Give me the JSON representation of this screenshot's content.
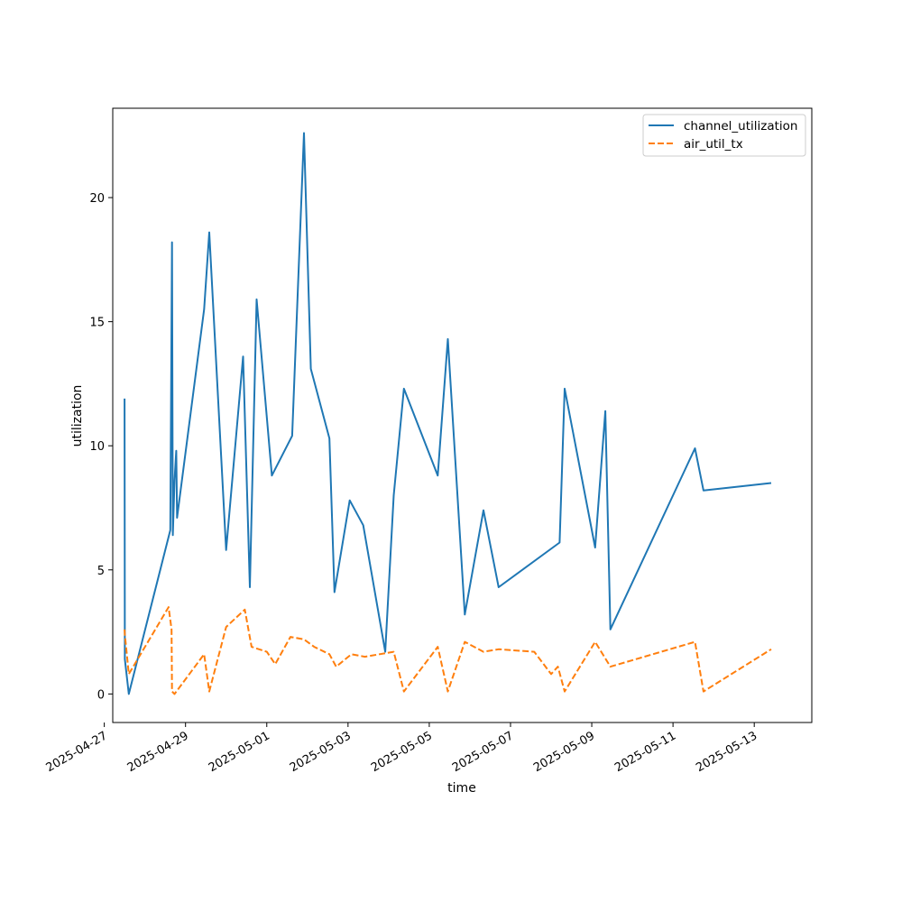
{
  "chart_data": {
    "type": "line",
    "title": "",
    "xlabel": "time",
    "ylabel": "utilization",
    "x_is_date": true,
    "xlim": [
      "2025-04-27T05:00",
      "2025-05-14T10:00"
    ],
    "ylim": [
      -1.15,
      23.6
    ],
    "x_ticks": [
      "2025-04-27",
      "2025-04-29",
      "2025-05-01",
      "2025-05-03",
      "2025-05-05",
      "2025-05-07",
      "2025-05-09",
      "2025-05-11",
      "2025-05-13"
    ],
    "y_ticks": [
      0,
      5,
      10,
      15,
      20
    ],
    "grid": false,
    "legend_position": "top-right",
    "series": [
      {
        "name": "channel_utilization",
        "color": "#1f77b4",
        "style": "solid",
        "points": [
          [
            "2025-04-27T12:00",
            11.9
          ],
          [
            "2025-04-27T12:10",
            1.4
          ],
          [
            "2025-04-27T14:30",
            0.0
          ],
          [
            "2025-04-28T15:00",
            6.6
          ],
          [
            "2025-04-28T16:00",
            18.2
          ],
          [
            "2025-04-28T16:30",
            6.4
          ],
          [
            "2025-04-28T17:30",
            8.6
          ],
          [
            "2025-04-28T18:30",
            9.8
          ],
          [
            "2025-04-28T19:00",
            7.1
          ],
          [
            "2025-04-29T11:00",
            15.5
          ],
          [
            "2025-04-29T14:00",
            18.6
          ],
          [
            "2025-04-30T00:00",
            5.8
          ],
          [
            "2025-04-30T10:00",
            13.6
          ],
          [
            "2025-04-30T14:00",
            4.3
          ],
          [
            "2025-04-30T18:00",
            15.9
          ],
          [
            "2025-05-01T03:00",
            8.8
          ],
          [
            "2025-05-01T15:00",
            10.4
          ],
          [
            "2025-05-01T22:00",
            22.6
          ],
          [
            "2025-05-02T02:00",
            13.1
          ],
          [
            "2025-05-02T13:00",
            10.3
          ],
          [
            "2025-05-02T16:00",
            4.1
          ],
          [
            "2025-05-03T01:00",
            7.8
          ],
          [
            "2025-05-03T09:00",
            6.8
          ],
          [
            "2025-05-03T22:00",
            1.7
          ],
          [
            "2025-05-04T03:00",
            8.0
          ],
          [
            "2025-05-04T09:00",
            12.3
          ],
          [
            "2025-05-05T05:00",
            8.8
          ],
          [
            "2025-05-05T11:00",
            14.3
          ],
          [
            "2025-05-05T21:00",
            3.2
          ],
          [
            "2025-05-06T08:00",
            7.4
          ],
          [
            "2025-05-06T17:00",
            4.3
          ],
          [
            "2025-05-08T05:00",
            6.1
          ],
          [
            "2025-05-08T08:00",
            12.3
          ],
          [
            "2025-05-09T02:00",
            5.9
          ],
          [
            "2025-05-09T08:00",
            11.4
          ],
          [
            "2025-05-09T11:00",
            2.6
          ],
          [
            "2025-05-11T13:00",
            9.9
          ],
          [
            "2025-05-11T18:00",
            8.2
          ],
          [
            "2025-05-13T10:00",
            8.5
          ]
        ]
      },
      {
        "name": "air_util_tx",
        "color": "#ff7f0e",
        "style": "dashed",
        "points": [
          [
            "2025-04-27T12:00",
            2.6
          ],
          [
            "2025-04-27T12:10",
            2.4
          ],
          [
            "2025-04-27T14:30",
            0.8
          ],
          [
            "2025-04-28T14:00",
            3.5
          ],
          [
            "2025-04-28T15:45",
            2.6
          ],
          [
            "2025-04-28T16:00",
            0.1
          ],
          [
            "2025-04-28T17:30",
            0.0
          ],
          [
            "2025-04-29T11:00",
            1.6
          ],
          [
            "2025-04-29T14:00",
            0.1
          ],
          [
            "2025-04-30T00:00",
            2.7
          ],
          [
            "2025-04-30T11:00",
            3.4
          ],
          [
            "2025-04-30T15:00",
            1.9
          ],
          [
            "2025-05-01T00:00",
            1.7
          ],
          [
            "2025-05-01T05:00",
            1.2
          ],
          [
            "2025-05-01T14:00",
            2.3
          ],
          [
            "2025-05-01T22:00",
            2.2
          ],
          [
            "2025-05-02T04:00",
            1.9
          ],
          [
            "2025-05-02T13:00",
            1.6
          ],
          [
            "2025-05-02T17:00",
            1.1
          ],
          [
            "2025-05-03T02:00",
            1.6
          ],
          [
            "2025-05-03T10:00",
            1.5
          ],
          [
            "2025-05-04T03:00",
            1.7
          ],
          [
            "2025-05-04T09:00",
            0.1
          ],
          [
            "2025-05-05T05:00",
            1.9
          ],
          [
            "2025-05-05T11:00",
            0.1
          ],
          [
            "2025-05-05T21:00",
            2.1
          ],
          [
            "2025-05-06T08:00",
            1.7
          ],
          [
            "2025-05-06T17:00",
            1.8
          ],
          [
            "2025-05-07T14:00",
            1.7
          ],
          [
            "2025-05-08T00:00",
            0.8
          ],
          [
            "2025-05-08T04:00",
            1.1
          ],
          [
            "2025-05-08T08:00",
            0.1
          ],
          [
            "2025-05-09T02:00",
            2.1
          ],
          [
            "2025-05-09T11:00",
            1.1
          ],
          [
            "2025-05-11T13:00",
            2.1
          ],
          [
            "2025-05-11T18:00",
            0.1
          ],
          [
            "2025-05-13T10:00",
            1.8
          ]
        ]
      }
    ]
  }
}
